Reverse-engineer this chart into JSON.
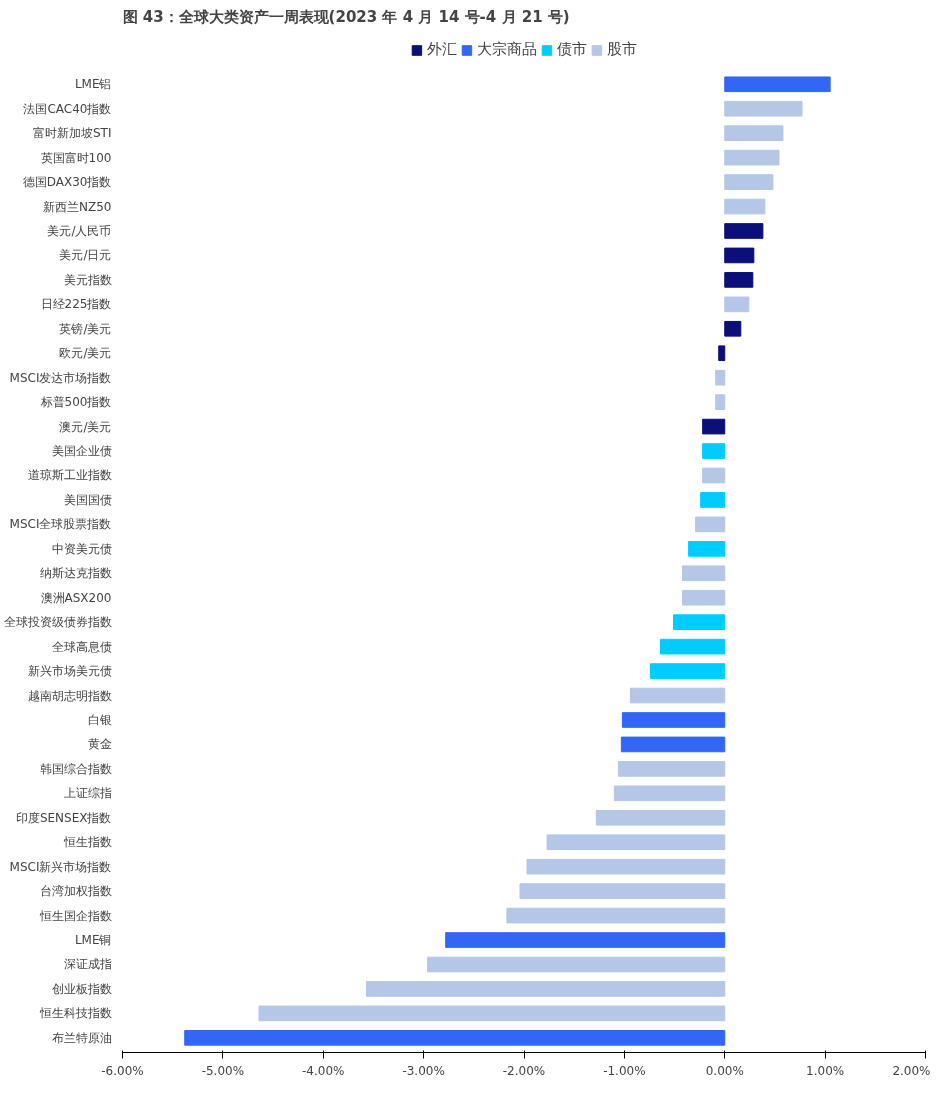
{
  "chart_data": {
    "type": "bar",
    "orientation": "horizontal",
    "title": "图 43：全球大类资产一周表现(2023 年 4 月 14 号-4 月 21 号)",
    "categories": [
      "LME铝",
      "法国CAC40指数",
      "富时新加坡STI",
      "英国富时100",
      "德国DAX30指数",
      "新西兰NZ50",
      "美元/人民币",
      "美元/日元",
      "美元指数",
      "日经225指数",
      "英镑/美元",
      "欧元/美元",
      "MSCI发达市场指数",
      "标普500指数",
      "澳元/美元",
      "美国企业债",
      "道琼斯工业指数",
      "美国国债",
      "MSCI全球股票指数",
      "中资美元债",
      "纳斯达克指数",
      "澳洲ASX200",
      "全球投资级债券指数",
      "全球高息债",
      "新兴市场美元债",
      "越南胡志明指数",
      "白银",
      "黄金",
      "韩国综合指数",
      "上证综指",
      "印度SENSEX指数",
      "恒生指数",
      "MSCI新兴市场指数",
      "台湾加权指数",
      "恒生国企指数",
      "LME铜",
      "深证成指",
      "创业板指数",
      "恒生科技指数",
      "布兰特原油"
    ],
    "series": [
      {
        "name": "外汇",
        "color": "#0a0f7a",
        "values": [
          null,
          null,
          null,
          null,
          null,
          null,
          0.38,
          0.29,
          0.28,
          null,
          0.16,
          -0.06,
          null,
          null,
          -0.22,
          null,
          null,
          null,
          null,
          null,
          null,
          null,
          null,
          null,
          null,
          null,
          null,
          null,
          null,
          null,
          null,
          null,
          null,
          null,
          null,
          null,
          null,
          null,
          null,
          null
        ]
      },
      {
        "name": "大宗商品",
        "color": "#3366f5",
        "values": [
          1.05,
          null,
          null,
          null,
          null,
          null,
          null,
          null,
          null,
          null,
          null,
          null,
          null,
          null,
          null,
          null,
          null,
          null,
          null,
          null,
          null,
          null,
          null,
          null,
          null,
          null,
          -1.02,
          -1.03,
          null,
          null,
          null,
          null,
          null,
          null,
          null,
          -2.78,
          null,
          null,
          null,
          -5.38
        ]
      },
      {
        "name": "债市",
        "color": "#00ccff",
        "values": [
          null,
          null,
          null,
          null,
          null,
          null,
          null,
          null,
          null,
          null,
          null,
          null,
          null,
          null,
          null,
          -0.22,
          null,
          -0.24,
          null,
          -0.36,
          null,
          null,
          -0.51,
          -0.64,
          -0.74,
          null,
          null,
          null,
          null,
          null,
          null,
          null,
          null,
          null,
          null,
          null,
          null,
          null,
          null,
          null
        ]
      },
      {
        "name": "股市",
        "color": "#b4c7e7",
        "values": [
          null,
          0.77,
          0.58,
          0.54,
          0.48,
          0.4,
          null,
          null,
          null,
          0.24,
          null,
          null,
          -0.09,
          -0.09,
          null,
          null,
          -0.22,
          null,
          -0.29,
          null,
          -0.42,
          -0.42,
          null,
          null,
          null,
          -0.94,
          null,
          null,
          -1.06,
          -1.1,
          -1.28,
          -1.77,
          -1.97,
          -2.04,
          -2.17,
          null,
          -2.96,
          -3.57,
          -4.64,
          null
        ]
      }
    ],
    "xlim": [
      -6,
      2
    ],
    "xticks": [
      {
        "value": -6,
        "label": "-6.00%"
      },
      {
        "value": -5,
        "label": "-5.00%"
      },
      {
        "value": -4,
        "label": "-4.00%"
      },
      {
        "value": -3,
        "label": "-3.00%"
      },
      {
        "value": -2,
        "label": "-2.00%"
      },
      {
        "value": -1,
        "label": "-1.00%"
      },
      {
        "value": 0,
        "label": "0.00%"
      },
      {
        "value": 1,
        "label": "1.00%"
      },
      {
        "value": 2,
        "label": "2.00%"
      }
    ],
    "legend": "top",
    "grid": false
  }
}
